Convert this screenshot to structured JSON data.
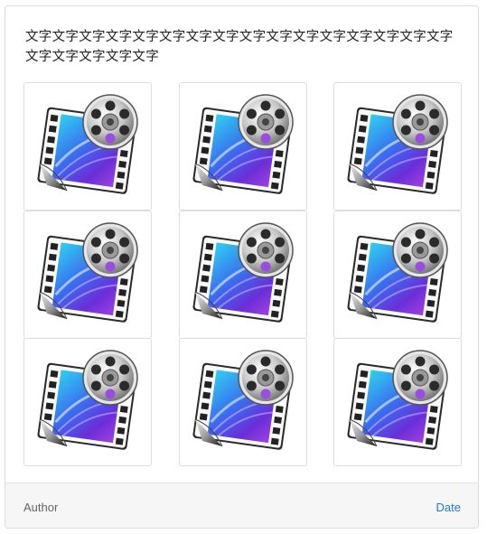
{
  "card": {
    "title": "文字文字文字文字文字文字文字文字文字文字文字文字文字文字文字文字文字文字文字文字文字",
    "thumbnails": [
      {
        "icon": "video-film-reel-icon"
      },
      {
        "icon": "video-film-reel-icon"
      },
      {
        "icon": "video-film-reel-icon"
      },
      {
        "icon": "video-film-reel-icon"
      },
      {
        "icon": "video-film-reel-icon"
      },
      {
        "icon": "video-film-reel-icon"
      },
      {
        "icon": "video-film-reel-icon"
      },
      {
        "icon": "video-film-reel-icon"
      },
      {
        "icon": "video-film-reel-icon"
      }
    ],
    "footer": {
      "author": "Author",
      "date": "Date"
    }
  },
  "colors": {
    "link": "#1e7bc6",
    "footer_bg": "#f6f6f6"
  }
}
